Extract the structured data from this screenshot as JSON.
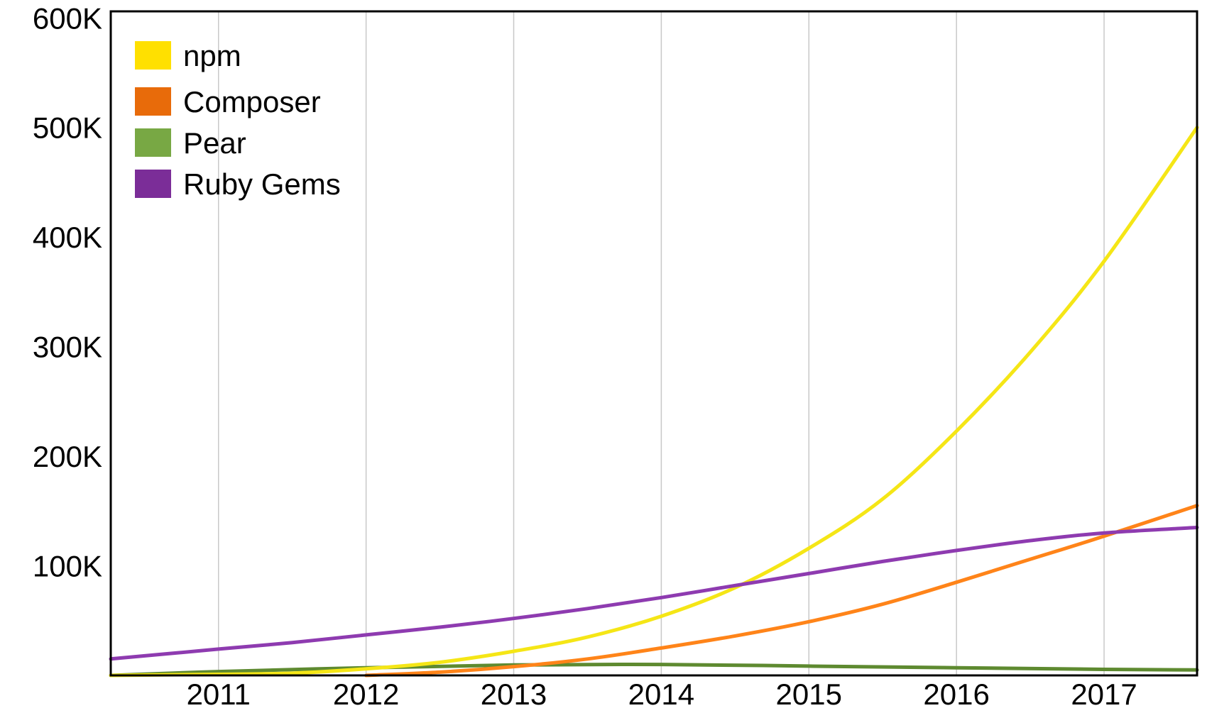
{
  "chart_data": {
    "type": "line",
    "title": "",
    "xlabel": "",
    "ylabel": "",
    "x_ticks": [
      "2011",
      "2012",
      "2013",
      "2014",
      "2015",
      "2016",
      "2017"
    ],
    "y_ticks": [
      "100K",
      "200K",
      "300K",
      "400K",
      "500K",
      "600K"
    ],
    "xlim": [
      2010.27,
      2017.63
    ],
    "ylim": [
      0,
      606000
    ],
    "grid": "vertical",
    "legend_position": "top-left",
    "series": [
      {
        "name": "npm",
        "color": "#f5e616",
        "x": [
          2010.27,
          2011,
          2011.5,
          2012,
          2012.5,
          2013,
          2013.5,
          2014,
          2014.5,
          2015,
          2015.5,
          2016,
          2016.5,
          2017,
          2017.63
        ],
        "y": [
          0,
          1000,
          2000,
          6000,
          12000,
          22000,
          35000,
          54000,
          80000,
          116000,
          161000,
          223000,
          295000,
          378000,
          500000
        ]
      },
      {
        "name": "Composer",
        "color": "#ff8419",
        "x": [
          2012,
          2012.5,
          2013,
          2013.5,
          2014,
          2014.5,
          2015,
          2015.5,
          2016,
          2016.5,
          2017,
          2017.63
        ],
        "y": [
          0,
          3000,
          8000,
          15000,
          25000,
          36000,
          49000,
          65000,
          85000,
          106000,
          127000,
          155000
        ]
      },
      {
        "name": "Pear",
        "color": "#5e8a30",
        "x": [
          2010.27,
          2011,
          2012,
          2013,
          2014,
          2015,
          2016,
          2017,
          2017.63
        ],
        "y": [
          0,
          3500,
          7000,
          9500,
          10000,
          8500,
          7000,
          5500,
          5000
        ]
      },
      {
        "name": "Ruby Gems",
        "color": "#8e3bb0",
        "x": [
          2010.27,
          2011,
          2011.5,
          2012,
          2012.5,
          2013,
          2013.5,
          2014,
          2014.5,
          2015,
          2015.5,
          2016,
          2016.5,
          2017,
          2017.63
        ],
        "y": [
          15000,
          24000,
          30000,
          37000,
          44000,
          52000,
          61000,
          71000,
          82000,
          93000,
          104000,
          114000,
          123000,
          130000,
          135000
        ]
      }
    ],
    "legend": [
      {
        "name": "npm",
        "swatch_color": "#ffe000"
      },
      {
        "name": "Composer",
        "swatch_color": "#e86b0a"
      },
      {
        "name": "Pear",
        "swatch_color": "#78a844"
      },
      {
        "name": "Ruby Gems",
        "swatch_color": "#7b2d98"
      }
    ]
  }
}
